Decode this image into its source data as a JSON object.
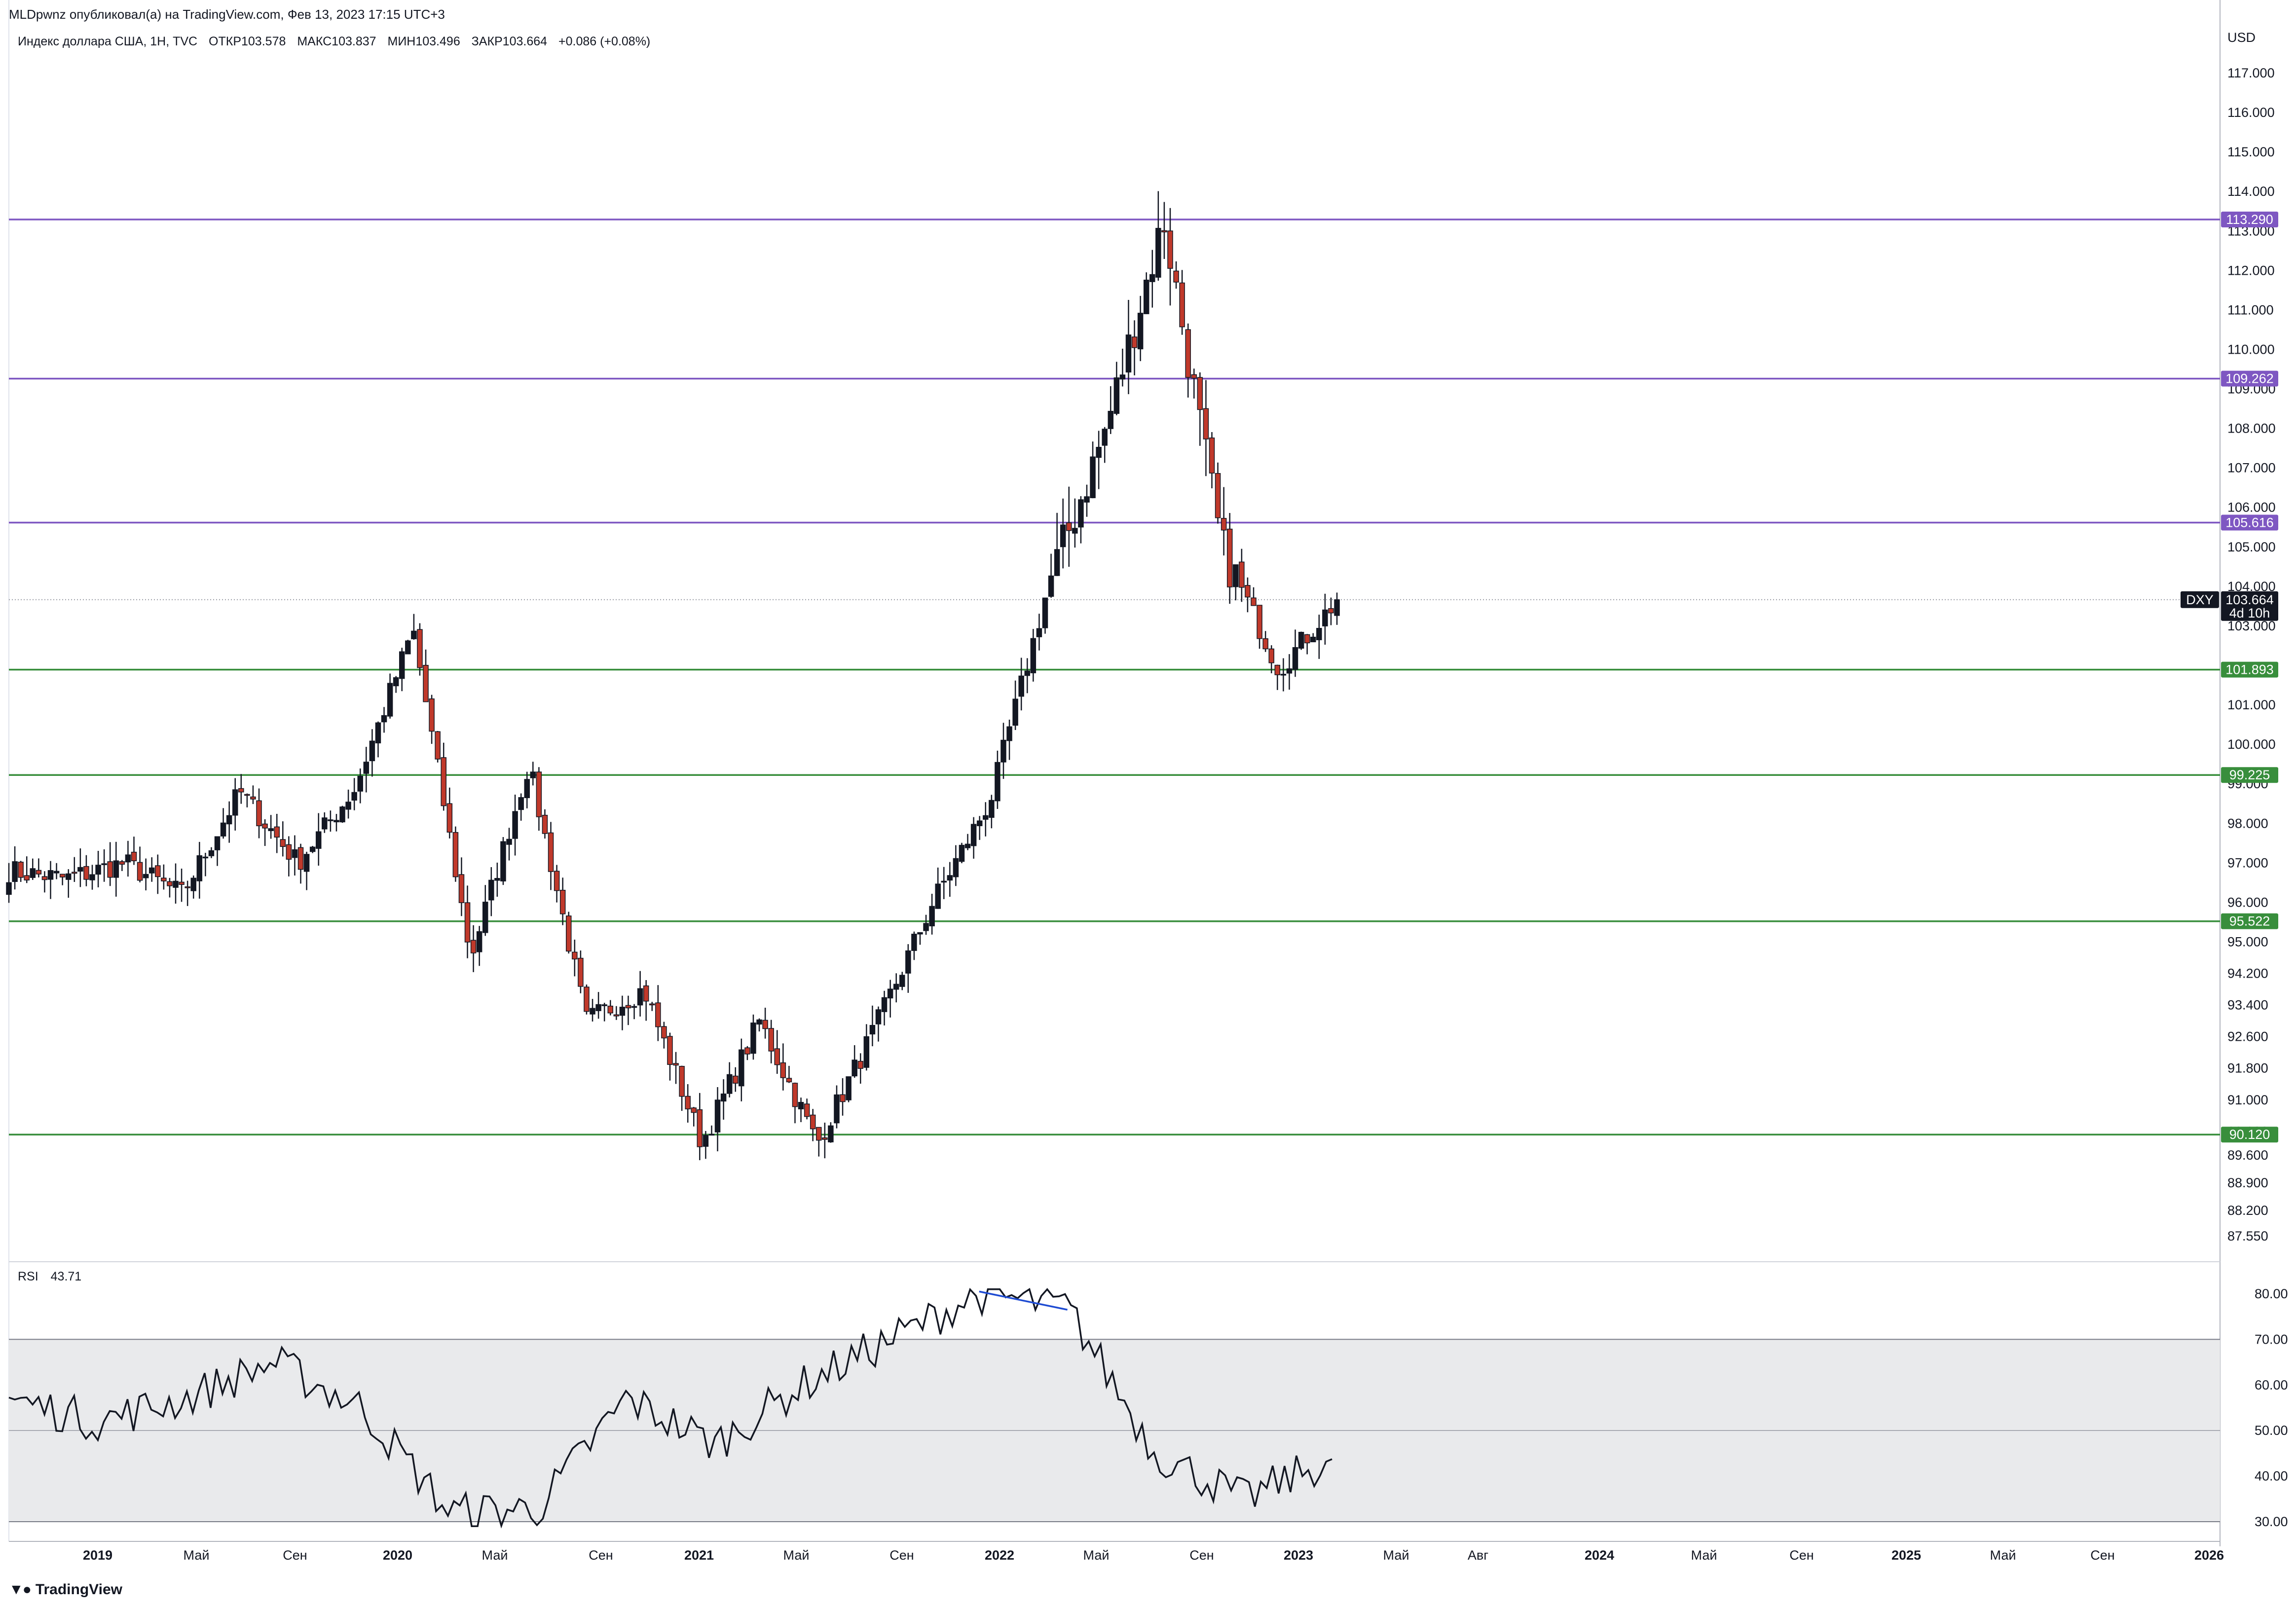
{
  "header": {
    "publisher": "MLDpwnz опубликовал(а) на TradingView.com, Фев 13, 2023 17:15 UTC+3",
    "symbol": "Индекс доллара США, 1Н, TVC",
    "open": "ОТКР103.578",
    "high": "МАКС103.837",
    "low": "МИН103.496",
    "close": "ЗАКР103.664",
    "change": "+0.086 (+0.08%)"
  },
  "price_axis": {
    "currency": "USD",
    "ticks": [
      "117.000",
      "116.000",
      "115.000",
      "114.000",
      "113.000",
      "112.000",
      "111.000",
      "110.000",
      "109.000",
      "108.000",
      "107.000",
      "106.000",
      "105.000",
      "104.000",
      "103.000",
      "101.000",
      "100.000",
      "99.000",
      "98.000",
      "97.000",
      "96.000",
      "95.000",
      "94.200",
      "93.400",
      "92.600",
      "91.800",
      "91.000",
      "90.200",
      "89.600",
      "88.900",
      "88.200",
      "87.550"
    ]
  },
  "levels": [
    {
      "label": "113.290",
      "price": 113.29,
      "color": "#7e57c2"
    },
    {
      "label": "109.262",
      "price": 109.262,
      "color": "#7e57c2"
    },
    {
      "label": "105.616",
      "price": 105.616,
      "color": "#7e57c2"
    },
    {
      "label": "101.893",
      "price": 101.893,
      "color": "#388e3c"
    },
    {
      "label": "99.225",
      "price": 99.225,
      "color": "#388e3c"
    },
    {
      "label": "95.522",
      "price": 95.522,
      "color": "#388e3c"
    },
    {
      "label": "90.120",
      "price": 90.12,
      "color": "#388e3c"
    }
  ],
  "current": {
    "ticker": "DXY",
    "price": "103.664",
    "countdown": "4d 10h",
    "value": 103.664
  },
  "rsi": {
    "name": "RSI",
    "value": "43.71",
    "ticks": [
      "80.00",
      "70.00",
      "60.00",
      "50.00",
      "40.00",
      "30.00"
    ],
    "band": [
      30,
      70
    ],
    "mid": 50
  },
  "time_axis": [
    {
      "label": "2019",
      "bold": true
    },
    {
      "label": "Май",
      "bold": false
    },
    {
      "label": "Сен",
      "bold": false
    },
    {
      "label": "2020",
      "bold": true
    },
    {
      "label": "Май",
      "bold": false
    },
    {
      "label": "Сен",
      "bold": false
    },
    {
      "label": "2021",
      "bold": true
    },
    {
      "label": "Май",
      "bold": false
    },
    {
      "label": "Сен",
      "bold": false
    },
    {
      "label": "2022",
      "bold": true
    },
    {
      "label": "Май",
      "bold": false
    },
    {
      "label": "Сен",
      "bold": false
    },
    {
      "label": "2023",
      "bold": true
    },
    {
      "label": "Май",
      "bold": false
    },
    {
      "label": "Авг",
      "bold": false
    },
    {
      "label": "2024",
      "bold": true
    },
    {
      "label": "Май",
      "bold": false
    },
    {
      "label": "Сен",
      "bold": false
    },
    {
      "label": "2025",
      "bold": true
    },
    {
      "label": "Май",
      "bold": false
    },
    {
      "label": "Сен",
      "bold": false
    },
    {
      "label": "2026",
      "bold": true
    }
  ],
  "footer": {
    "logo": "TradingView"
  },
  "colors": {
    "up": "#131722",
    "down": "#c0392b",
    "grid": "#b2b5be",
    "rsi_band": "#e9eaec",
    "divergence": "#1e4bd2"
  },
  "chart_data": {
    "type": "candlestick",
    "timeframe": "1W",
    "anchors": [
      {
        "date": "2018-11",
        "close": 96.8
      },
      {
        "date": "2019-01",
        "close": 96.6
      },
      {
        "date": "2019-04",
        "close": 97.0
      },
      {
        "date": "2019-06",
        "close": 96.2
      },
      {
        "date": "2019-09",
        "close": 98.8
      },
      {
        "date": "2019-12",
        "close": 97.0
      },
      {
        "date": "2020-02",
        "close": 98.9
      },
      {
        "date": "2020-03-high",
        "close": 102.9
      },
      {
        "date": "2020-03-low",
        "close": 94.6
      },
      {
        "date": "2020-05",
        "close": 99.5
      },
      {
        "date": "2020-08",
        "close": 93.0
      },
      {
        "date": "2020-10",
        "close": 93.8
      },
      {
        "date": "2021-01",
        "close": 89.9
      },
      {
        "date": "2021-03",
        "close": 93.0
      },
      {
        "date": "2021-05",
        "close": 89.9
      },
      {
        "date": "2021-08",
        "close": 92.8
      },
      {
        "date": "2021-11",
        "close": 96.0
      },
      {
        "date": "2022-03",
        "close": 98.6
      },
      {
        "date": "2022-05",
        "close": 104.0
      },
      {
        "date": "2022-07",
        "close": 108.0
      },
      {
        "date": "2022-09",
        "close": 113.3
      },
      {
        "date": "2022-11",
        "close": 105.0
      },
      {
        "date": "2023-01",
        "close": 101.9
      },
      {
        "date": "2023-02",
        "close": 103.664
      }
    ],
    "rsi_anchors": [
      {
        "date": "2018-11",
        "value": 57
      },
      {
        "date": "2019-03",
        "value": 52
      },
      {
        "date": "2019-09",
        "value": 57
      },
      {
        "date": "2020-03",
        "value": 65
      },
      {
        "date": "2020-05",
        "value": 55
      },
      {
        "date": "2020-09",
        "value": 32
      },
      {
        "date": "2021-01",
        "value": 33
      },
      {
        "date": "2021-03",
        "value": 57
      },
      {
        "date": "2021-06",
        "value": 47
      },
      {
        "date": "2021-11",
        "value": 60
      },
      {
        "date": "2022-03",
        "value": 70
      },
      {
        "date": "2022-05",
        "value": 80
      },
      {
        "date": "2022-09",
        "value": 77
      },
      {
        "date": "2022-11",
        "value": 45
      },
      {
        "date": "2023-01",
        "value": 35
      },
      {
        "date": "2023-02",
        "value": 43.71
      }
    ],
    "divergence": {
      "from": {
        "date": "2022-05",
        "value": 80.5
      },
      "to": {
        "date": "2022-09",
        "value": 76.5
      }
    },
    "ylim": [
      87.0,
      117.6
    ],
    "rsi_ylim": [
      28,
      83
    ]
  }
}
